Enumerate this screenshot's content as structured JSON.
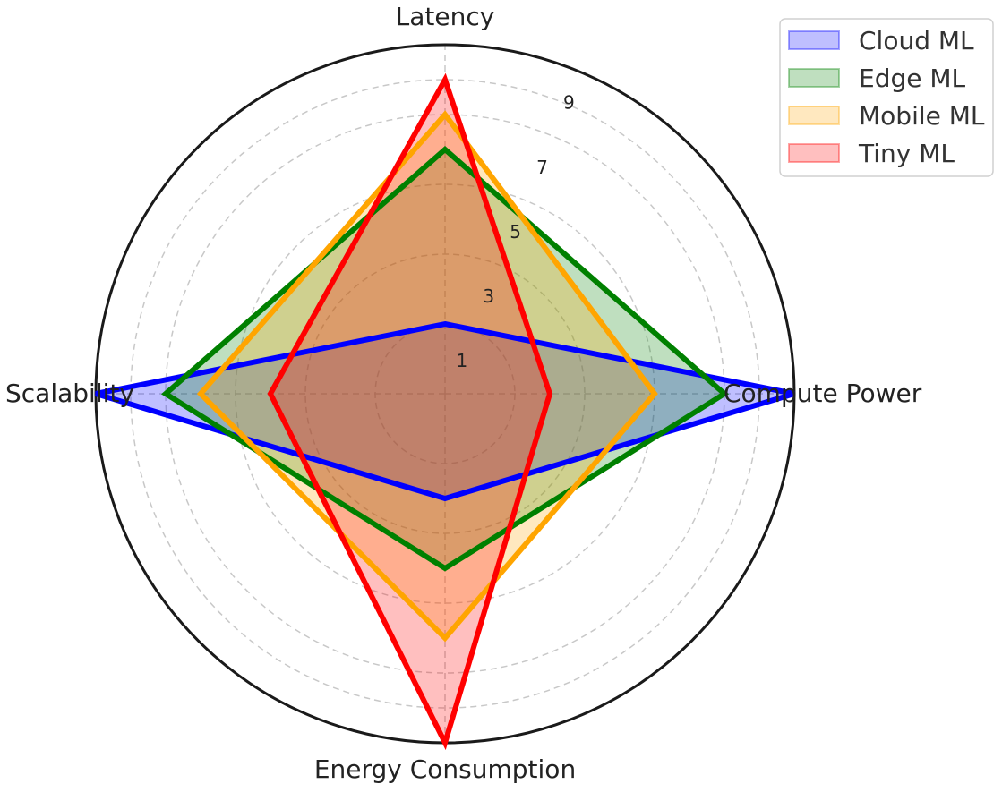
{
  "chart_data": {
    "type": "radar",
    "axes": [
      "Latency",
      "Compute Power",
      "Energy Consumption",
      "Scalability"
    ],
    "rlim": [
      0,
      10
    ],
    "rticks": [
      1,
      3,
      5,
      7,
      9
    ],
    "grid": true,
    "legend_position": "top-right",
    "series": [
      {
        "name": "Cloud ML",
        "values": [
          2,
          10,
          3,
          10
        ],
        "color": "#0000ff"
      },
      {
        "name": "Edge ML",
        "values": [
          7,
          8,
          5,
          8
        ],
        "color": "#008000"
      },
      {
        "name": "Mobile ML",
        "values": [
          8,
          6,
          7,
          7
        ],
        "color": "#ffa500"
      },
      {
        "name": "Tiny ML",
        "values": [
          9,
          3,
          10,
          5
        ],
        "color": "#ff0000"
      }
    ]
  }
}
